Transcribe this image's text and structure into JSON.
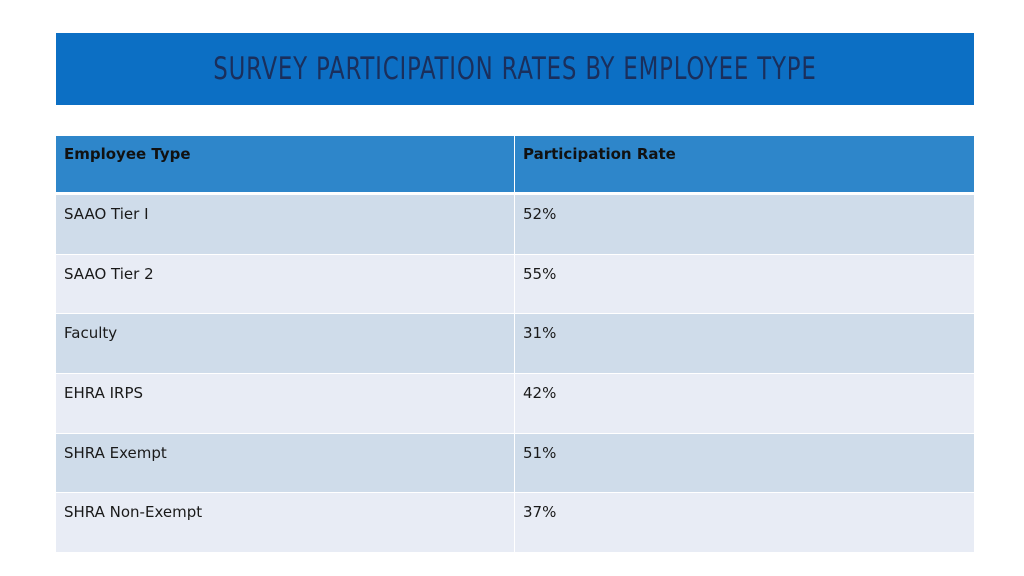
{
  "title": "SURVEY PARTICIPATION RATES BY EMPLOYEE TYPE",
  "colors": {
    "title_bar": "#0c6fc4",
    "title_text": "#1a2f5c",
    "header_row": "#2e86ca",
    "row_odd": "#cfdcea",
    "row_even": "#e8ecf5"
  },
  "table": {
    "headers": [
      "Employee Type",
      "Participation Rate"
    ],
    "rows": [
      [
        "SAAO Tier I",
        "52%"
      ],
      [
        "SAAO Tier 2",
        "55%"
      ],
      [
        "Faculty",
        "31%"
      ],
      [
        "EHRA IRPS",
        "42%"
      ],
      [
        "SHRA Exempt",
        "51%"
      ],
      [
        "SHRA Non-Exempt",
        "37%"
      ]
    ]
  }
}
